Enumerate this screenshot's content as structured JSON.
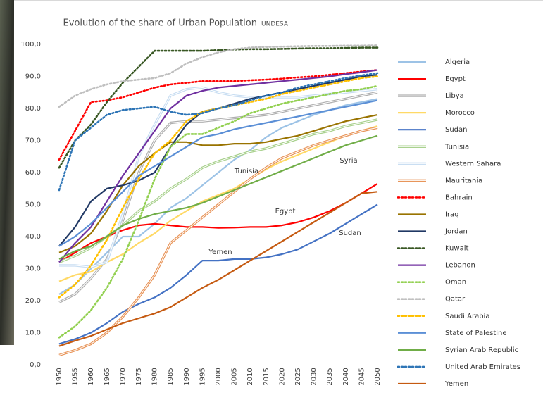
{
  "chart_data": {
    "type": "line",
    "title": "Evolution of the share of Urban Population",
    "subtitle": "UNDESA",
    "x": [
      1950,
      1955,
      1960,
      1965,
      1970,
      1975,
      1980,
      1985,
      1990,
      1995,
      2000,
      2005,
      2010,
      2015,
      2020,
      2025,
      2030,
      2035,
      2040,
      2045,
      2050
    ],
    "xlim": [
      1950,
      2050
    ],
    "ylim": [
      0,
      100
    ],
    "yticks": [
      {
        "value": 0,
        "label": "0,0"
      },
      {
        "value": 10,
        "label": "10,0"
      },
      {
        "value": 20,
        "label": "20,0"
      },
      {
        "value": 30,
        "label": "30,0"
      },
      {
        "value": 40,
        "label": "40,0"
      },
      {
        "value": 50,
        "label": "50,0"
      },
      {
        "value": 60,
        "label": "60,0"
      },
      {
        "value": 70,
        "label": "70,0"
      },
      {
        "value": 80,
        "label": "80,0"
      },
      {
        "value": 90,
        "label": "90,0"
      },
      {
        "value": 100,
        "label": "100,0"
      }
    ],
    "grid": false,
    "legend": "right",
    "annotations": [
      "Tunisia",
      "Syria",
      "Egypt",
      "Sudan",
      "Yemen"
    ],
    "series": [
      {
        "name": "Algeria",
        "color": "#9dc3e6",
        "style": "solid",
        "values": [
          22,
          25,
          30,
          35,
          40,
          40,
          44,
          49,
          52,
          56,
          60,
          64,
          67,
          71,
          74,
          76,
          78,
          79.5,
          81,
          82,
          83
        ]
      },
      {
        "name": "Egypt",
        "color": "#ff0000",
        "style": "solid",
        "values": [
          32,
          35,
          38,
          40,
          42,
          43.5,
          44,
          43.5,
          43,
          43,
          42.7,
          42.8,
          43,
          43,
          43.5,
          44.5,
          46,
          48,
          50.5,
          53.5,
          56.5
        ]
      },
      {
        "name": "Libya",
        "color": "#b0b0b0",
        "style": "double",
        "values": [
          19.5,
          22,
          27,
          33,
          45,
          60,
          70,
          75.5,
          76,
          76,
          76.5,
          77,
          77.5,
          78,
          79,
          80,
          81,
          82,
          83,
          84,
          85
        ]
      },
      {
        "name": "Morocco",
        "color": "#ffd966",
        "style": "solid",
        "values": [
          26,
          28,
          29,
          32,
          34.5,
          38,
          41,
          45,
          48,
          51,
          53,
          55,
          58,
          61,
          63.5,
          65.5,
          67.5,
          69.5,
          71.5,
          73,
          74.5
        ]
      },
      {
        "name": "Sudan",
        "color": "#4472c4",
        "style": "solid",
        "values": [
          6.5,
          8,
          10,
          13,
          16.5,
          19,
          21,
          24,
          28,
          32.5,
          32.5,
          33,
          33,
          33.5,
          34.5,
          36,
          38.5,
          41,
          44,
          47,
          50
        ]
      },
      {
        "name": "Tunisia",
        "color": "#a9d18e",
        "style": "double",
        "values": [
          32,
          34,
          36.5,
          40,
          43.5,
          48,
          51,
          55,
          58,
          61.5,
          63.5,
          65,
          66.5,
          67.5,
          69,
          70.5,
          72,
          73,
          74.5,
          75.5,
          76.5
        ]
      },
      {
        "name": "Western Sahara",
        "color": "#c9def2",
        "style": "double",
        "values": [
          31,
          31,
          30.5,
          32,
          47,
          65,
          75,
          84,
          86,
          86.5,
          85,
          84,
          83.5,
          83.5,
          83.5,
          83.5,
          84,
          84.5,
          85,
          85.5,
          86
        ]
      },
      {
        "name": "Mauritania",
        "color": "#e8955a",
        "style": "double",
        "values": [
          3,
          4.5,
          6.5,
          10,
          15,
          21,
          28,
          38,
          42,
          46,
          50,
          54,
          58,
          61.5,
          64.5,
          66.5,
          68.5,
          70,
          71.5,
          73,
          74
        ]
      },
      {
        "name": "Bahrain",
        "color": "#ff0000",
        "style": "dotted",
        "values": [
          64,
          73,
          82,
          82.5,
          83.5,
          85,
          86.5,
          87.5,
          88,
          88.5,
          88.5,
          88.5,
          88.8,
          89,
          89.3,
          89.7,
          90,
          90.5,
          91,
          91.5,
          92
        ]
      },
      {
        "name": "Iraq",
        "color": "#997300",
        "style": "solid",
        "values": [
          35,
          37,
          41,
          48,
          56,
          62,
          66,
          69.5,
          69.5,
          68.5,
          68.5,
          69,
          69,
          69.5,
          70.5,
          71.5,
          73,
          74.5,
          76,
          77,
          78
        ]
      },
      {
        "name": "Jordan",
        "color": "#203864",
        "style": "solid",
        "values": [
          37,
          43,
          51,
          55,
          56,
          57.5,
          60,
          68,
          75,
          79,
          80,
          81.5,
          83,
          84,
          85,
          86,
          87,
          88,
          89,
          90,
          90.5
        ]
      },
      {
        "name": "Kuwait",
        "color": "#385723",
        "style": "dotted",
        "values": [
          61.5,
          70,
          75,
          82,
          88,
          93,
          98,
          98,
          98,
          98,
          98.2,
          98.4,
          98.5,
          98.5,
          98.6,
          98.7,
          98.8,
          98.8,
          98.9,
          99,
          99
        ]
      },
      {
        "name": "Lebanon",
        "color": "#7030a0",
        "style": "solid",
        "values": [
          32,
          38,
          43,
          51,
          59,
          66,
          73,
          80,
          84,
          85.5,
          86.5,
          87,
          87.5,
          88,
          88.5,
          89,
          89.5,
          90,
          90.7,
          91.3,
          92
        ]
      },
      {
        "name": "Oman",
        "color": "#92d050",
        "style": "dotted",
        "values": [
          8.5,
          12,
          17,
          24,
          33,
          45,
          58,
          68,
          72,
          72,
          74,
          76,
          78.5,
          80,
          81.5,
          82.5,
          83.5,
          84.5,
          85.5,
          86,
          87
        ]
      },
      {
        "name": "Qatar",
        "color": "#bfbfbf",
        "style": "dotted",
        "values": [
          80.5,
          84,
          86,
          87.5,
          88.5,
          89,
          89.5,
          91,
          94,
          96,
          97.5,
          98.5,
          99,
          99.2,
          99.3,
          99.4,
          99.5,
          99.5,
          99.6,
          99.6,
          99.7
        ]
      },
      {
        "name": "Saudi Arabia",
        "color": "#ffc000",
        "style": "dotted",
        "values": [
          21,
          25,
          31,
          39,
          49,
          58,
          66,
          70,
          76,
          79,
          80,
          81,
          82,
          83,
          84.5,
          85.5,
          86.5,
          87.5,
          88.5,
          89.5,
          90
        ]
      },
      {
        "name": "State of Palestine",
        "color": "#5b8fd6",
        "style": "solid",
        "values": [
          37,
          40,
          44,
          49,
          54,
          59,
          62,
          65,
          68,
          71,
          72,
          73.5,
          74.5,
          75.5,
          76.5,
          77.5,
          78.5,
          79.5,
          80.5,
          81.5,
          82.5
        ]
      },
      {
        "name": "Syrian Arab Republic",
        "color": "#70ad47",
        "style": "solid",
        "values": [
          33,
          35.5,
          37,
          40,
          43.5,
          45.5,
          47,
          48,
          49,
          50.5,
          52.5,
          54.5,
          56.5,
          58.5,
          60.5,
          62.5,
          64.5,
          66.5,
          68.5,
          70,
          71.5
        ]
      },
      {
        "name": "United Arab Emirates",
        "color": "#2e75b6",
        "style": "dotted",
        "values": [
          54.5,
          70,
          74,
          78,
          79.5,
          80,
          80.5,
          79,
          78,
          78.5,
          80,
          81,
          82.5,
          84,
          85,
          86.5,
          87.5,
          88.5,
          89.5,
          90.3,
          91
        ]
      },
      {
        "name": "Yemen",
        "color": "#c55a11",
        "style": "solid",
        "values": [
          5.8,
          7.5,
          9,
          11,
          13,
          14.5,
          16,
          18,
          21,
          24,
          26.5,
          29.5,
          32.5,
          35.5,
          38.5,
          41.5,
          44.5,
          47.5,
          50.5,
          53.5,
          54
        ]
      }
    ]
  }
}
